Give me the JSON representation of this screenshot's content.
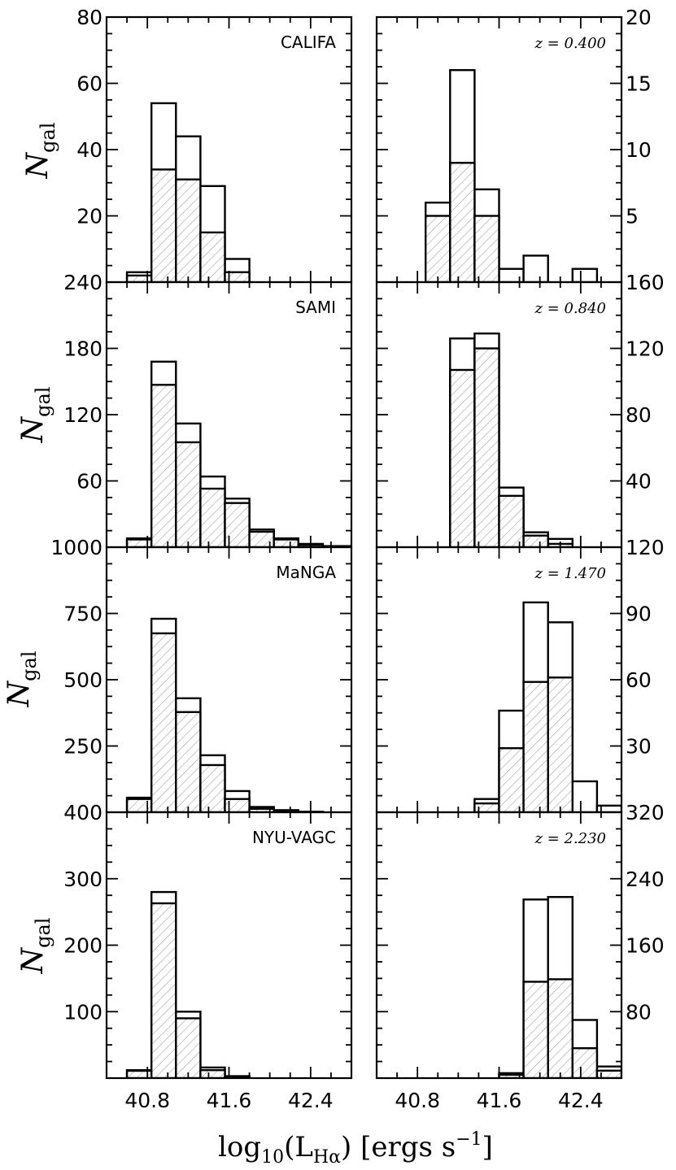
{
  "figure": {
    "xlabel_main": "log",
    "xlabel_sub": "10",
    "xlabel_paren": "(L",
    "xlabel_lsub": "Hα",
    "xlabel_rest": ") [ergs s",
    "xlabel_sup": "−1",
    "xlabel_close": "]",
    "ylabel_main": "N",
    "ylabel_sub": "gal"
  },
  "colors": {
    "outline": "#000000",
    "hatch": "#9a9a9a",
    "hatch_fill": "#ffffff"
  },
  "chart_data": [
    {
      "type": "bar",
      "panel": "CALIFA",
      "label": "CALIFA",
      "label_style": "sans",
      "xlim": [
        40.4,
        42.8
      ],
      "ylim": [
        0,
        80
      ],
      "xticks": [
        40.8,
        41.6,
        42.4
      ],
      "xtick_labels": [],
      "yticks": [
        20,
        40,
        60,
        80
      ],
      "ytick_labels": [
        "20",
        "40",
        "60",
        "80"
      ],
      "yaxis": "left",
      "bin_edges": [
        40.6,
        40.84,
        41.08,
        41.32,
        41.56,
        41.8
      ],
      "series": [
        {
          "name": "",
          "style": "outline",
          "values": [
            3,
            54,
            44,
            29,
            7
          ]
        },
        {
          "name": "",
          "style": "hatched",
          "values": [
            2,
            34,
            31,
            15,
            3
          ]
        }
      ]
    },
    {
      "type": "bar",
      "panel": "z=0.400",
      "label": "z = 0.400",
      "label_style": "math",
      "xlim": [
        40.4,
        42.8
      ],
      "ylim": [
        0,
        20
      ],
      "xticks": [
        40.8,
        41.6,
        42.4
      ],
      "xtick_labels": [],
      "yticks": [
        5,
        10,
        15,
        20
      ],
      "ytick_labels": [
        "5",
        "10",
        "15",
        "20"
      ],
      "yaxis": "right",
      "bin_edges": [
        40.88,
        41.12,
        41.36,
        41.6,
        41.84,
        42.08,
        42.32,
        42.56,
        42.8
      ],
      "series": [
        {
          "name": "",
          "style": "outline",
          "values": [
            6,
            16,
            7,
            1,
            2,
            0,
            1,
            0
          ]
        },
        {
          "name": "",
          "style": "hatched",
          "values": [
            5,
            9,
            5,
            0,
            0,
            0,
            0,
            0
          ]
        }
      ]
    },
    {
      "type": "bar",
      "panel": "SAMI",
      "label": "SAMI",
      "label_style": "sans",
      "xlim": [
        40.4,
        42.8
      ],
      "ylim": [
        0,
        240
      ],
      "xticks": [
        40.8,
        41.6,
        42.4
      ],
      "xtick_labels": [],
      "yticks": [
        60,
        120,
        180,
        240
      ],
      "ytick_labels": [
        "60",
        "120",
        "180",
        "240"
      ],
      "yaxis": "left",
      "bin_edges": [
        40.6,
        40.84,
        41.08,
        41.32,
        41.56,
        41.8,
        42.04,
        42.28,
        42.52,
        42.8
      ],
      "series": [
        {
          "name": "",
          "style": "outline",
          "values": [
            8,
            168,
            112,
            64,
            44,
            16,
            8,
            3,
            1
          ]
        },
        {
          "name": "",
          "style": "hatched",
          "values": [
            7,
            147,
            95,
            53,
            40,
            14,
            7,
            2,
            0
          ]
        }
      ]
    },
    {
      "type": "bar",
      "panel": "z=0.840",
      "label": "z = 0.840",
      "label_style": "math",
      "xlim": [
        40.4,
        42.8
      ],
      "ylim": [
        0,
        160
      ],
      "xticks": [
        40.8,
        41.6,
        42.4
      ],
      "xtick_labels": [],
      "yticks": [
        40,
        80,
        120,
        160
      ],
      "ytick_labels": [
        "40",
        "80",
        "120",
        "160"
      ],
      "yaxis": "right",
      "bin_edges": [
        41.12,
        41.36,
        41.6,
        41.84,
        42.08,
        42.32
      ],
      "series": [
        {
          "name": "",
          "style": "outline",
          "values": [
            126,
            129,
            36,
            9,
            5
          ]
        },
        {
          "name": "",
          "style": "hatched",
          "values": [
            107,
            120,
            31,
            7,
            2
          ]
        }
      ]
    },
    {
      "type": "bar",
      "panel": "MaNGA",
      "label": "MaNGA",
      "label_style": "sans",
      "xlim": [
        40.4,
        42.8
      ],
      "ylim": [
        0,
        1000
      ],
      "xticks": [
        40.8,
        41.6,
        42.4
      ],
      "xtick_labels": [],
      "yticks": [
        250,
        500,
        750,
        1000
      ],
      "ytick_labels": [
        "250",
        "500",
        "750",
        "1000"
      ],
      "yaxis": "left",
      "bin_edges": [
        40.6,
        40.84,
        41.08,
        41.32,
        41.56,
        41.8,
        42.04,
        42.28,
        42.52
      ],
      "series": [
        {
          "name": "",
          "style": "outline",
          "values": [
            55,
            730,
            430,
            215,
            80,
            20,
            8,
            2
          ]
        },
        {
          "name": "",
          "style": "hatched",
          "values": [
            50,
            675,
            378,
            178,
            50,
            13,
            4,
            0
          ]
        }
      ]
    },
    {
      "type": "bar",
      "panel": "z=1.470",
      "label": "z = 1.470",
      "label_style": "math",
      "xlim": [
        40.4,
        42.8
      ],
      "ylim": [
        0,
        120
      ],
      "xticks": [
        40.8,
        41.6,
        42.4
      ],
      "xtick_labels": [],
      "yticks": [
        30,
        60,
        90,
        120
      ],
      "ytick_labels": [
        "30",
        "60",
        "90",
        "120"
      ],
      "yaxis": "right",
      "bin_edges": [
        41.36,
        41.6,
        41.84,
        42.08,
        42.32,
        42.56,
        42.8
      ],
      "series": [
        {
          "name": "",
          "style": "outline",
          "values": [
            6,
            46,
            95,
            86,
            14,
            3
          ]
        },
        {
          "name": "",
          "style": "hatched",
          "values": [
            4,
            29,
            59,
            61,
            0,
            0
          ]
        }
      ]
    },
    {
      "type": "bar",
      "panel": "NYU-VAGC",
      "label": "NYU-VAGC",
      "label_style": "sans",
      "xlim": [
        40.4,
        42.8
      ],
      "ylim": [
        0,
        400
      ],
      "xticks": [
        40.8,
        41.6,
        42.4
      ],
      "xtick_labels": [
        "40.8",
        "41.6",
        "42.4"
      ],
      "yticks": [
        100,
        200,
        300,
        400
      ],
      "ytick_labels": [
        "100",
        "200",
        "300",
        "400"
      ],
      "yaxis": "left",
      "bin_edges": [
        40.6,
        40.84,
        41.08,
        41.32,
        41.56,
        41.8
      ],
      "series": [
        {
          "name": "",
          "style": "outline",
          "values": [
            12,
            280,
            100,
            16,
            3
          ]
        },
        {
          "name": "",
          "style": "hatched",
          "values": [
            11,
            263,
            90,
            12,
            2
          ]
        }
      ]
    },
    {
      "type": "bar",
      "panel": "z=2.230",
      "label": "z = 2.230",
      "label_style": "math",
      "xlim": [
        40.4,
        42.8
      ],
      "ylim": [
        0,
        320
      ],
      "xticks": [
        40.8,
        41.6,
        42.4
      ],
      "xtick_labels": [
        "40.8",
        "41.6",
        "42.4"
      ],
      "yticks": [
        80,
        160,
        240,
        320
      ],
      "ytick_labels": [
        "80",
        "160",
        "240",
        "320"
      ],
      "yaxis": "right",
      "bin_edges": [
        41.6,
        41.84,
        42.08,
        42.32,
        42.56,
        42.8
      ],
      "series": [
        {
          "name": "",
          "style": "outline",
          "values": [
            6,
            215,
            218,
            70,
            14
          ]
        },
        {
          "name": "",
          "style": "hatched",
          "values": [
            4,
            116,
            119,
            36,
            9
          ]
        }
      ]
    }
  ]
}
